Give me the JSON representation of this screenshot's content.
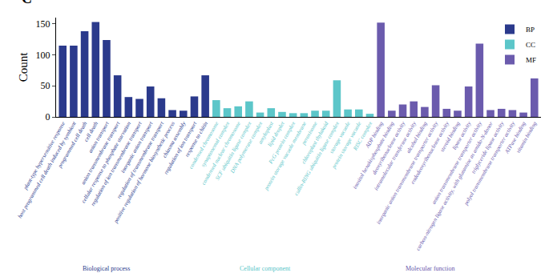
{
  "chart_data": {
    "type": "bar",
    "title": "C",
    "y_label": "Count",
    "categories": [
      "plant-type hypersensitive response",
      "host programmed cell death induced by symbiont",
      "programmed cell death",
      "cell death",
      "anion transport",
      "anion transmembrane transport",
      "cellular response to phosphate starvation",
      "regulation of ion transmembrane transport",
      "inorganic anion transport",
      "regulation of transmembrane transport",
      "positive regulation of hormone biosynthetic process",
      "chiasma assembly",
      "regulation of ion transport",
      "response to chitin",
      "condensed chromosome",
      "synaptonemal complex",
      "condensed nuclear chromosome",
      "SCF ubiquitin ligase complex",
      "DNA polymerase complex",
      "amyloplast",
      "lipid droplet",
      "PcG protein complex",
      "protein storage vacuole membrane",
      "peroxisome",
      "chloroplast thylakoid",
      "cullin-RING ubiquitin ligase complex",
      "storage vacuole",
      "protein storage vacuole",
      "RISC complex",
      "ADP binding",
      "inositol hexakisphosphate binding",
      "deoxyribonuclease activity",
      "intramolecular transferase activity",
      "alcohol binding",
      "inorganic anion transmembrane transporter activity",
      "endodeoxyribonuclease activity",
      "steroid binding",
      "lipase activity",
      "anion transmembrane transporter activity",
      "carbon-nitrogen ligase activity, with glutamine as amido-N-donor",
      "triglyceride lipase activity",
      "polyol transmembrane transporter activity",
      "ATPase binding",
      "vitamin binding"
    ],
    "series": [
      {
        "name": "BP",
        "color": "#2b3a8c",
        "group_label": "Biological process",
        "values": [
          115,
          115,
          138,
          153,
          124,
          67,
          32,
          29,
          49,
          30,
          11,
          10,
          33,
          67,
          null,
          null,
          null,
          null,
          null,
          null,
          null,
          null,
          null,
          null,
          null,
          null,
          null,
          null,
          null,
          null,
          null,
          null,
          null,
          null,
          null,
          null,
          null,
          null,
          null,
          null,
          null,
          null,
          null,
          null
        ]
      },
      {
        "name": "CC",
        "color": "#5cc6c9",
        "group_label": "Cellular component",
        "values": [
          null,
          null,
          null,
          null,
          null,
          null,
          null,
          null,
          null,
          null,
          null,
          null,
          null,
          null,
          27,
          14,
          17,
          25,
          7,
          14,
          8,
          6,
          6,
          10,
          10,
          59,
          12,
          12,
          5,
          null,
          null,
          null,
          null,
          null,
          null,
          null,
          null,
          null,
          null,
          null,
          null,
          null,
          null,
          null
        ]
      },
      {
        "name": "MF",
        "color": "#6b5bad",
        "group_label": "Molecular function",
        "values": [
          null,
          null,
          null,
          null,
          null,
          null,
          null,
          null,
          null,
          null,
          null,
          null,
          null,
          null,
          null,
          null,
          null,
          null,
          null,
          null,
          null,
          null,
          null,
          null,
          null,
          null,
          null,
          null,
          null,
          152,
          10,
          20,
          25,
          16,
          51,
          13,
          10,
          49,
          118,
          11,
          13,
          11,
          7,
          62
        ]
      }
    ],
    "ylim": [
      0,
      160
    ],
    "yticks": [
      0,
      50,
      100,
      150
    ],
    "grid": false,
    "legend": "upper right"
  }
}
